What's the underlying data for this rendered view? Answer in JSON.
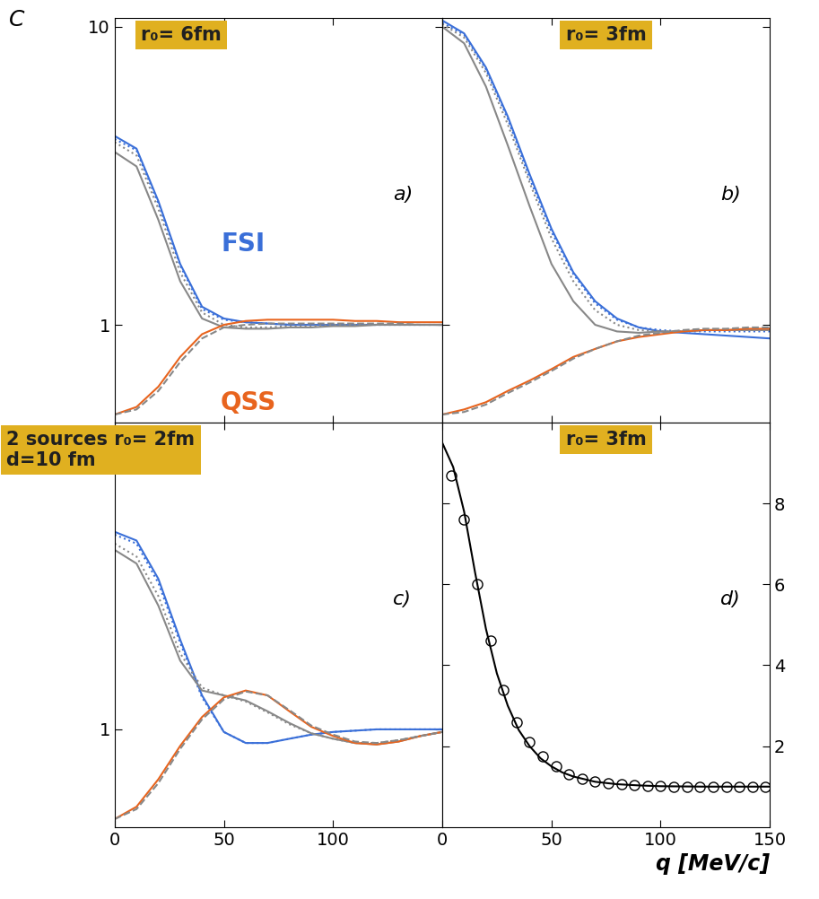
{
  "chart_data": [
    {
      "type": "line",
      "title": "r₀= 6fm",
      "annotations": [
        "a)"
      ],
      "y_label": "C",
      "log": "y",
      "xlim": [
        0,
        150
      ],
      "ylim": [
        0.47,
        10.7
      ],
      "xticks": [
        0,
        50,
        100
      ],
      "yticks": [
        1,
        10
      ],
      "tick_labels": "y",
      "x": [
        0,
        10,
        20,
        30,
        40,
        50,
        60,
        70,
        80,
        90,
        100,
        110,
        120,
        130,
        140,
        150
      ],
      "series": [
        {
          "name": "FSI",
          "color": "#3a6fd8",
          "line_style": "solid",
          "values": [
            4.3,
            3.9,
            2.6,
            1.6,
            1.15,
            1.05,
            1.02,
            1.01,
            1.0,
            1.0,
            1.0,
            1.0,
            1.0,
            1.0,
            1.0,
            1.0
          ]
        },
        {
          "color": "#3a6fd8",
          "line_style": "dotted",
          "values": [
            4.2,
            3.85,
            2.55,
            1.58,
            1.13,
            1.04,
            1.02,
            1.01,
            1.0,
            1.0,
            1.0,
            1.0,
            1.0,
            1.0,
            1.0,
            1.0
          ]
        },
        {
          "color": "#888888",
          "line_style": "solid",
          "values": [
            3.8,
            3.4,
            2.25,
            1.4,
            1.05,
            0.98,
            0.97,
            0.97,
            0.98,
            0.98,
            0.99,
            0.99,
            1.0,
            1.0,
            1.0,
            1.0
          ]
        },
        {
          "color": "#888888",
          "line_style": "dotted",
          "values": [
            4.1,
            3.7,
            2.45,
            1.5,
            1.1,
            1.0,
            0.98,
            0.98,
            0.99,
            0.99,
            1.0,
            1.0,
            1.0,
            1.0,
            1.0,
            1.0
          ]
        },
        {
          "name": "QSS",
          "color": "#e8641e",
          "line_style": "solid",
          "values": [
            0.5,
            0.53,
            0.62,
            0.78,
            0.93,
            1.0,
            1.03,
            1.04,
            1.04,
            1.04,
            1.04,
            1.03,
            1.03,
            1.02,
            1.02,
            1.02
          ]
        },
        {
          "color": "#888888",
          "line_style": "dashed",
          "values": [
            0.5,
            0.52,
            0.6,
            0.75,
            0.9,
            0.98,
            1.0,
            1.01,
            1.01,
            1.01,
            1.01,
            1.01,
            1.01,
            1.01,
            1.0,
            1.0
          ]
        }
      ]
    },
    {
      "type": "line",
      "title": "r₀= 3fm",
      "annotations": [
        "b)"
      ],
      "log": "y",
      "xlim": [
        0,
        150
      ],
      "ylim": [
        0.47,
        10.7
      ],
      "xticks": [
        0,
        50,
        100
      ],
      "yticks": [
        1,
        10
      ],
      "tick_labels": false,
      "x": [
        0,
        10,
        20,
        30,
        40,
        50,
        60,
        70,
        80,
        90,
        100,
        110,
        120,
        130,
        140,
        150
      ],
      "series": [
        {
          "color": "#3a6fd8",
          "line_style": "solid",
          "values": [
            10.5,
            9.5,
            7.3,
            5.0,
            3.2,
            2.1,
            1.5,
            1.2,
            1.05,
            0.98,
            0.95,
            0.94,
            0.93,
            0.92,
            0.91,
            0.9
          ]
        },
        {
          "color": "#3a6fd8",
          "line_style": "dotted",
          "values": [
            10.3,
            9.4,
            7.2,
            4.9,
            3.1,
            2.05,
            1.48,
            1.18,
            1.04,
            0.98,
            0.96,
            0.95,
            0.95,
            0.95,
            0.95,
            0.95
          ]
        },
        {
          "color": "#888888",
          "line_style": "solid",
          "values": [
            10.0,
            8.8,
            6.3,
            4.0,
            2.5,
            1.6,
            1.2,
            1.0,
            0.95,
            0.94,
            0.95,
            0.95,
            0.96,
            0.96,
            0.96,
            0.96
          ]
        },
        {
          "color": "#888888",
          "line_style": "dotted",
          "values": [
            10.2,
            9.2,
            7.0,
            4.7,
            3.0,
            1.95,
            1.4,
            1.12,
            1.0,
            0.96,
            0.95,
            0.95,
            0.96,
            0.96,
            0.96,
            0.96
          ]
        },
        {
          "color": "#e8641e",
          "line_style": "solid",
          "values": [
            0.5,
            0.52,
            0.55,
            0.6,
            0.65,
            0.71,
            0.78,
            0.83,
            0.88,
            0.91,
            0.93,
            0.95,
            0.96,
            0.96,
            0.97,
            0.97
          ]
        },
        {
          "color": "#888888",
          "line_style": "dashed",
          "values": [
            0.5,
            0.51,
            0.54,
            0.59,
            0.64,
            0.7,
            0.77,
            0.83,
            0.88,
            0.92,
            0.94,
            0.96,
            0.97,
            0.97,
            0.98,
            0.98
          ]
        }
      ]
    },
    {
      "type": "line",
      "title": "2 sources r₀= 2fm\nd=10 fm",
      "annotations": [
        "c)"
      ],
      "log": "y",
      "xlim": [
        0,
        150
      ],
      "ylim": [
        0.47,
        10.7
      ],
      "xticks": [
        0,
        50,
        100
      ],
      "yticks": [
        1
      ],
      "x": [
        0,
        10,
        20,
        30,
        40,
        50,
        60,
        70,
        80,
        90,
        100,
        110,
        120,
        130,
        140,
        150
      ],
      "series": [
        {
          "color": "#3a6fd8",
          "line_style": "solid",
          "values": [
            4.6,
            4.3,
            3.2,
            2.0,
            1.3,
            0.98,
            0.9,
            0.9,
            0.93,
            0.96,
            0.98,
            0.99,
            1.0,
            1.0,
            1.0,
            1.0
          ]
        },
        {
          "color": "#3a6fd8",
          "line_style": "dotted",
          "values": [
            4.5,
            4.2,
            3.1,
            1.95,
            1.28,
            0.98,
            0.9,
            0.9,
            0.93,
            0.96,
            0.98,
            0.99,
            1.0,
            1.0,
            1.0,
            1.0
          ]
        },
        {
          "color": "#888888",
          "line_style": "solid",
          "values": [
            4.0,
            3.6,
            2.6,
            1.7,
            1.35,
            1.3,
            1.25,
            1.15,
            1.05,
            0.97,
            0.93,
            0.9,
            0.89,
            0.91,
            0.95,
            0.98
          ]
        },
        {
          "color": "#888888",
          "line_style": "dotted",
          "values": [
            4.2,
            3.8,
            2.8,
            1.8,
            1.38,
            1.3,
            1.24,
            1.14,
            1.04,
            0.97,
            0.93,
            0.9,
            0.9,
            0.92,
            0.95,
            0.98
          ]
        },
        {
          "color": "#e8641e",
          "line_style": "solid",
          "values": [
            0.5,
            0.55,
            0.68,
            0.88,
            1.1,
            1.28,
            1.35,
            1.3,
            1.15,
            1.02,
            0.95,
            0.9,
            0.89,
            0.91,
            0.95,
            0.98
          ]
        },
        {
          "color": "#888888",
          "line_style": "dashed",
          "values": [
            0.5,
            0.54,
            0.66,
            0.86,
            1.08,
            1.26,
            1.34,
            1.3,
            1.16,
            1.03,
            0.96,
            0.91,
            0.9,
            0.92,
            0.95,
            0.98
          ]
        }
      ]
    },
    {
      "type": "line",
      "title": "r₀= 3fm",
      "annotations": [
        "d)"
      ],
      "x_label": "q [MeV/c]",
      "xlim": [
        0,
        150
      ],
      "ylim": [
        0,
        10
      ],
      "xticks": [
        0,
        50,
        100,
        150
      ],
      "yticks": [
        2,
        4,
        6,
        8
      ],
      "series": [
        {
          "color": "#000000",
          "line_style": "solid",
          "x": [
            0,
            5,
            10,
            15,
            20,
            25,
            30,
            35,
            40,
            45,
            50,
            55,
            60,
            70,
            80,
            90,
            100,
            120,
            150
          ],
          "values": [
            9.5,
            8.9,
            7.8,
            6.3,
            4.9,
            3.8,
            3.0,
            2.4,
            2.0,
            1.7,
            1.5,
            1.35,
            1.25,
            1.12,
            1.06,
            1.03,
            1.01,
            1.0,
            1.0
          ]
        },
        {
          "color": "#000000",
          "line_style": "none",
          "marker": "o",
          "x": [
            4,
            10,
            16,
            22,
            28,
            34,
            40,
            46,
            52,
            58,
            64,
            70,
            76,
            82,
            88,
            94,
            100,
            106,
            112,
            118,
            124,
            130,
            136,
            142,
            148
          ],
          "values": [
            8.7,
            7.6,
            6.0,
            4.6,
            3.4,
            2.6,
            2.1,
            1.75,
            1.5,
            1.3,
            1.2,
            1.12,
            1.08,
            1.05,
            1.03,
            1.02,
            1.01,
            1.0,
            1.0,
            1.0,
            1.0,
            1.0,
            1.0,
            1.0,
            1.0
          ]
        }
      ]
    }
  ]
}
